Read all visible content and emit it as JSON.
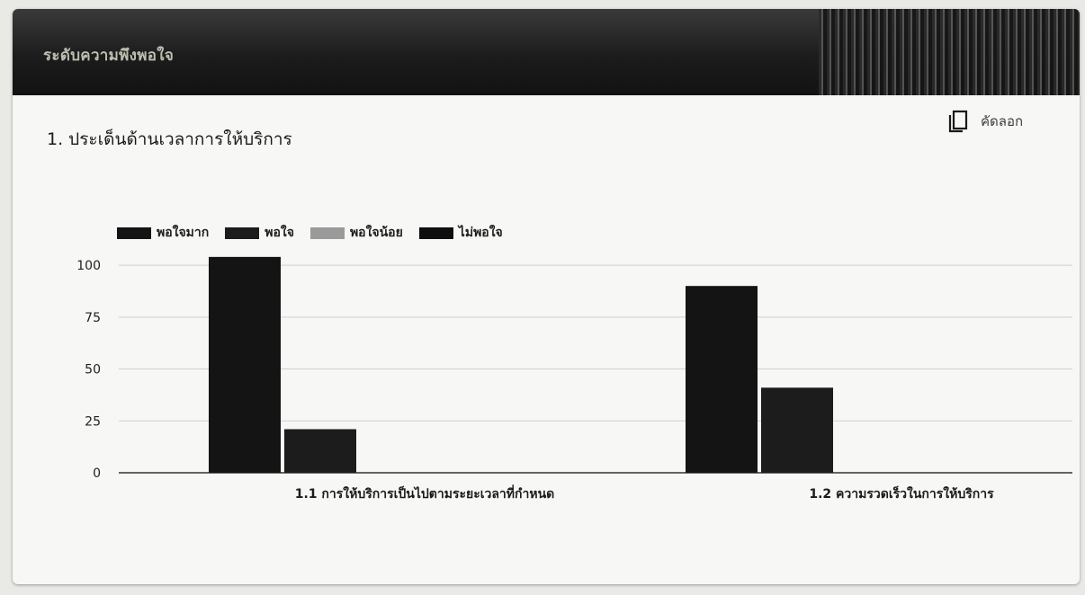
{
  "header": {
    "title": "ระดับความพึงพอใจ"
  },
  "section": {
    "title": "1. ประเด็นด้านเวลาการให้บริการ"
  },
  "toolbar": {
    "copy_label": "คัดลอก",
    "copy_icon": "copy-icon"
  },
  "colors": {
    "very_satisfied": "#141414",
    "satisfied": "#1c1c1c",
    "less_satisfied": "#9a9a9a",
    "not_satisfied": "#0e0e0e"
  },
  "chart_data": {
    "type": "bar",
    "categories": [
      "1.1 การให้บริการเป็นไปตามระยะเวลาที่กำหนด",
      "1.2 ความรวดเร็วในการให้บริการ"
    ],
    "series": [
      {
        "name": "พอใจมาก",
        "values": [
          104,
          90
        ]
      },
      {
        "name": "พอใจ",
        "values": [
          21,
          41
        ]
      },
      {
        "name": "พอใจน้อย",
        "values": [
          0,
          0
        ]
      },
      {
        "name": "ไม่พอใจ",
        "values": [
          0,
          0
        ]
      }
    ],
    "yticks": [
      "0",
      "25",
      "50",
      "75",
      "100"
    ],
    "ylim": [
      0,
      110
    ],
    "grid": true,
    "legend_position": "top-left"
  }
}
